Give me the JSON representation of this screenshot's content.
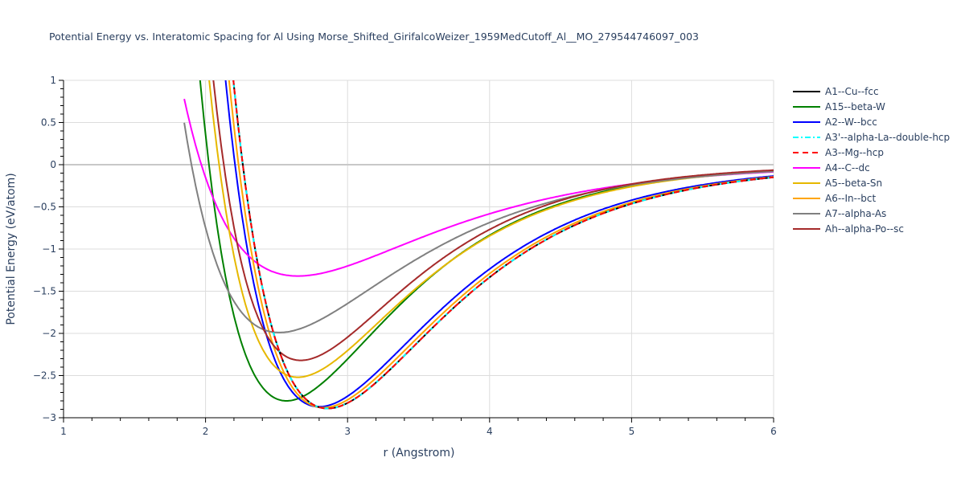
{
  "title": "Potential Energy vs. Interatomic Spacing for Al Using Morse_Shifted_GirifalcoWeizer_1959MedCutoff_Al__MO_279544746097_003",
  "chart_data": {
    "type": "line",
    "title": "Potential Energy vs. Interatomic Spacing for Al Using Morse_Shifted_GirifalcoWeizer_1959MedCutoff_Al__MO_279544746097_003",
    "xlabel": "r (Angstrom)",
    "ylabel": "Potential Energy (eV/atom)",
    "xlim": [
      1,
      6
    ],
    "ylim": [
      -3,
      1
    ],
    "xticks": [
      "1",
      "2",
      "3",
      "4",
      "5",
      "6"
    ],
    "yticks": [
      "1",
      "0.5",
      "0",
      "−0.5",
      "−1",
      "−1.5",
      "−2",
      "−2.5",
      "−3"
    ],
    "grid": true,
    "legend_position": "right",
    "model": "Morse-shaped curves approximated from plot: E(r)=D*((1-exp(-a*(r-r0)))^2-1)",
    "series": [
      {
        "name": "A1--Cu--fcc",
        "color": "#000000",
        "dash": "solid",
        "r0": 2.86,
        "D": 2.89,
        "a": 1.16,
        "min_point": [
          2.86,
          -2.89
        ],
        "samples": [
          [
            2.3,
            0.7
          ],
          [
            2.5,
            -1.5
          ],
          [
            2.86,
            -2.89
          ],
          [
            3.5,
            -1.95
          ],
          [
            4.0,
            -1.25
          ],
          [
            5.0,
            -0.42
          ],
          [
            6.0,
            -0.13
          ]
        ]
      },
      {
        "name": "A15--beta-W",
        "color": "#008000",
        "dash": "solid",
        "r0": 2.57,
        "D": 2.8,
        "a": 1.27,
        "min_point": [
          2.57,
          -2.8
        ],
        "samples": [
          [
            2.0,
            0.85
          ],
          [
            2.2,
            -1.3
          ],
          [
            2.57,
            -2.8
          ],
          [
            3.0,
            -2.25
          ],
          [
            3.5,
            -1.45
          ],
          [
            4.0,
            -0.78
          ],
          [
            5.0,
            -0.22
          ],
          [
            6.0,
            -0.06
          ]
        ]
      },
      {
        "name": "A2--W--bcc",
        "color": "#0000ff",
        "dash": "solid",
        "r0": 2.8,
        "D": 2.87,
        "a": 1.17,
        "min_point": [
          2.8,
          -2.87
        ],
        "samples": [
          [
            2.2,
            0.85
          ],
          [
            2.5,
            -1.8
          ],
          [
            2.8,
            -2.87
          ],
          [
            3.5,
            -1.85
          ],
          [
            4.0,
            -1.15
          ],
          [
            5.0,
            -0.38
          ],
          [
            6.0,
            -0.11
          ]
        ]
      },
      {
        "name": "A3'--alpha-La--double-hcp",
        "color": "#00ffff",
        "dash": "dashdot",
        "r0": 2.86,
        "D": 2.89,
        "a": 1.16,
        "min_point": [
          2.86,
          -2.89
        ],
        "samples": [
          [
            2.3,
            0.7
          ],
          [
            2.86,
            -2.89
          ],
          [
            4.0,
            -1.25
          ],
          [
            6.0,
            -0.13
          ]
        ]
      },
      {
        "name": "A3--Mg--hcp",
        "color": "#ff0000",
        "dash": "dash",
        "r0": 2.86,
        "D": 2.89,
        "a": 1.16,
        "min_point": [
          2.86,
          -2.89
        ],
        "samples": [
          [
            2.3,
            0.7
          ],
          [
            2.86,
            -2.89
          ],
          [
            4.0,
            -1.25
          ],
          [
            6.0,
            -0.13
          ]
        ]
      },
      {
        "name": "A4--C--dc",
        "color": "#ff00ff",
        "dash": "solid",
        "r0": 2.65,
        "D": 1.32,
        "a": 1.02,
        "min_point": [
          2.65,
          -1.32
        ],
        "samples": [
          [
            2.0,
            1.0
          ],
          [
            2.3,
            -0.6
          ],
          [
            2.65,
            -1.32
          ],
          [
            3.0,
            -1.15
          ],
          [
            3.5,
            -0.75
          ],
          [
            4.0,
            -0.45
          ],
          [
            5.0,
            -0.14
          ],
          [
            6.0,
            -0.04
          ]
        ]
      },
      {
        "name": "A5--beta-Sn",
        "color": "#e6b800",
        "dash": "solid",
        "r0": 2.65,
        "D": 2.52,
        "a": 1.25,
        "min_point": [
          2.65,
          -2.52
        ],
        "samples": [
          [
            2.05,
            1.0
          ],
          [
            2.3,
            -1.6
          ],
          [
            2.65,
            -2.52
          ],
          [
            3.0,
            -2.1
          ],
          [
            3.5,
            -1.4
          ],
          [
            4.0,
            -0.78
          ],
          [
            5.0,
            -0.22
          ],
          [
            6.0,
            -0.06
          ]
        ]
      },
      {
        "name": "A6--In--bct",
        "color": "#ffa500",
        "dash": "solid",
        "r0": 2.83,
        "D": 2.88,
        "a": 1.16,
        "min_point": [
          2.83,
          -2.88
        ],
        "samples": [
          [
            2.25,
            0.9
          ],
          [
            2.5,
            -1.6
          ],
          [
            2.83,
            -2.88
          ],
          [
            3.5,
            -1.9
          ],
          [
            4.0,
            -1.2
          ],
          [
            5.0,
            -0.4
          ],
          [
            6.0,
            -0.12
          ]
        ]
      },
      {
        "name": "A7--alpha-As",
        "color": "#808080",
        "dash": "solid",
        "r0": 2.52,
        "D": 1.99,
        "a": 1.12,
        "min_point": [
          2.52,
          -1.99
        ],
        "samples": [
          [
            1.93,
            1.0
          ],
          [
            2.0,
            0.1
          ],
          [
            2.2,
            -1.4
          ],
          [
            2.52,
            -1.99
          ],
          [
            3.0,
            -1.5
          ],
          [
            3.5,
            -0.95
          ],
          [
            4.0,
            -0.5
          ],
          [
            5.0,
            -0.14
          ],
          [
            6.0,
            -0.04
          ]
        ]
      },
      {
        "name": "Ah--alpha-Po--sc",
        "color": "#a52a2a",
        "dash": "solid",
        "r0": 2.67,
        "D": 2.32,
        "a": 1.28,
        "min_point": [
          2.67,
          -2.32
        ],
        "samples": [
          [
            2.1,
            1.0
          ],
          [
            2.3,
            -1.2
          ],
          [
            2.67,
            -2.32
          ],
          [
            3.0,
            -2.0
          ],
          [
            3.5,
            -1.4
          ],
          [
            4.0,
            -0.78
          ],
          [
            5.0,
            -0.22
          ],
          [
            6.0,
            -0.06
          ]
        ]
      }
    ]
  }
}
